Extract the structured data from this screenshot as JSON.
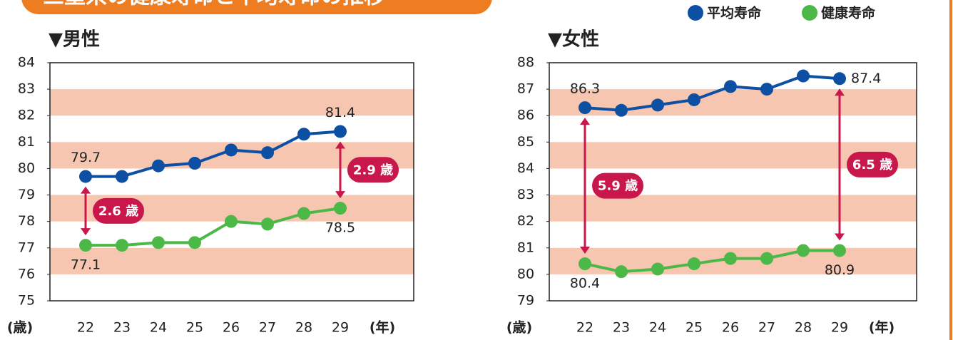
{
  "title": "三重県の健康寿命と平均寿命の推移",
  "chart_data": [
    {
      "type": "line",
      "title": "▼男性",
      "y_unit": "(歳)",
      "x_unit": "(年)",
      "categories": [
        "22",
        "23",
        "24",
        "25",
        "26",
        "27",
        "28",
        "29"
      ],
      "series": [
        {
          "name": "平均寿命",
          "color": "#0d4fa3",
          "values": [
            79.7,
            79.7,
            80.1,
            80.2,
            80.7,
            80.6,
            81.3,
            81.4
          ]
        },
        {
          "name": "健康寿命",
          "color": "#4cb848",
          "values": [
            77.1,
            77.1,
            77.2,
            77.2,
            78.0,
            77.9,
            78.3,
            78.5
          ]
        }
      ],
      "annotations": [
        "2.6 歳",
        "2.9 歳"
      ],
      "ylim": [
        75,
        84
      ],
      "yticks": [
        75,
        76,
        77,
        78,
        79,
        80,
        81,
        82,
        83,
        84
      ]
    },
    {
      "type": "line",
      "title": "▼女性",
      "y_unit": "(歳)",
      "x_unit": "(年)",
      "categories": [
        "22",
        "23",
        "24",
        "25",
        "26",
        "27",
        "28",
        "29"
      ],
      "series": [
        {
          "name": "平均寿命",
          "color": "#0d4fa3",
          "values": [
            86.3,
            86.2,
            86.4,
            86.6,
            87.1,
            87.0,
            87.5,
            87.4
          ]
        },
        {
          "name": "健康寿命",
          "color": "#4cb848",
          "values": [
            80.4,
            80.1,
            80.2,
            80.4,
            80.6,
            80.6,
            80.9,
            80.9
          ]
        }
      ],
      "annotations": [
        "5.9 歳",
        "6.5 歳"
      ],
      "ylim": [
        79,
        88
      ],
      "yticks": [
        79,
        80,
        81,
        82,
        83,
        84,
        85,
        86,
        87,
        88
      ]
    }
  ]
}
